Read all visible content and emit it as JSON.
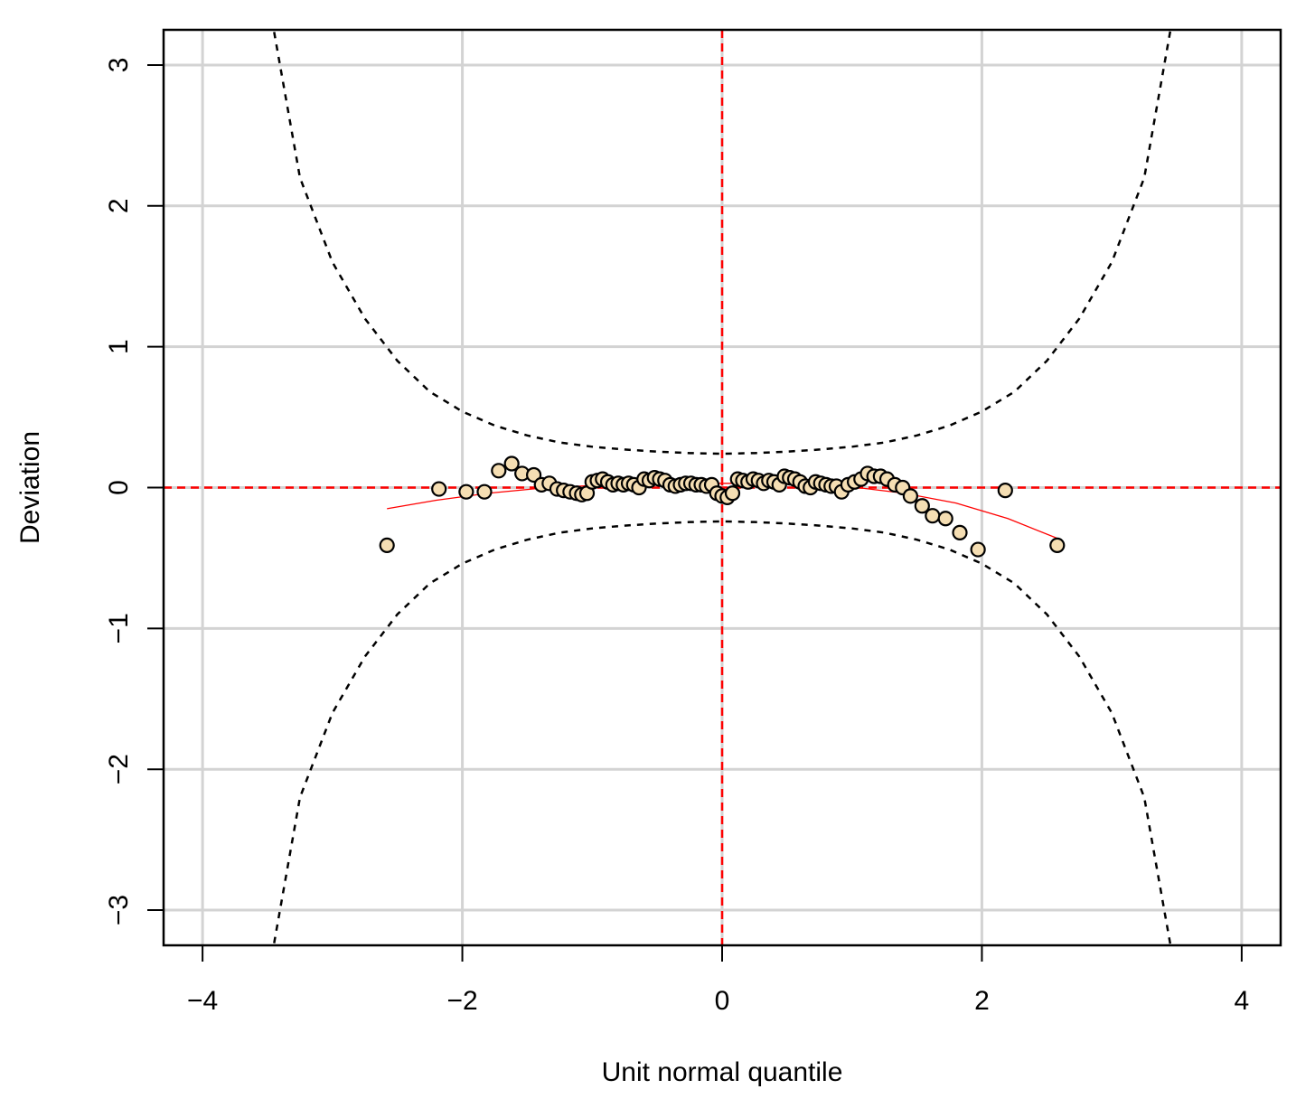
{
  "chart_data": {
    "type": "scatter",
    "title": "",
    "xlabel": "Unit normal quantile",
    "ylabel": "Deviation",
    "xlim": [
      -4.3,
      4.3
    ],
    "ylim": [
      -3.25,
      3.25
    ],
    "x_ticks": [
      -4,
      -2,
      0,
      2,
      4
    ],
    "y_ticks": [
      -3,
      -2,
      -1,
      0,
      1,
      2,
      3
    ],
    "x_tick_labels": [
      "−4",
      "−2",
      "0",
      "2",
      "4"
    ],
    "y_tick_labels": [
      "−3",
      "−2",
      "−1",
      "0",
      "1",
      "2",
      "3"
    ],
    "grid": true,
    "colors": {
      "point_fill": "#f5deb3",
      "point_stroke": "#000000",
      "reference_line": "#ff0000",
      "fit_curve": "#ff0000",
      "envelope": "#000000",
      "grid": "#d3d3d3"
    },
    "reference_lines": {
      "x": 0,
      "y": 0
    },
    "envelope_band": {
      "x": [
        -3.5,
        -3.25,
        -3.0,
        -2.75,
        -2.5,
        -2.25,
        -2.0,
        -1.75,
        -1.5,
        -1.25,
        -1.0,
        -0.75,
        -0.5,
        -0.25,
        0.0,
        0.25,
        0.5,
        0.75,
        1.0,
        1.25,
        1.5,
        1.75,
        2.0,
        2.25,
        2.5,
        2.75,
        3.0,
        3.25,
        3.5
      ],
      "upper": [
        3.5,
        2.2,
        1.6,
        1.2,
        0.9,
        0.68,
        0.54,
        0.44,
        0.37,
        0.32,
        0.29,
        0.27,
        0.255,
        0.245,
        0.24,
        0.245,
        0.255,
        0.27,
        0.29,
        0.32,
        0.37,
        0.44,
        0.54,
        0.68,
        0.9,
        1.2,
        1.6,
        2.2,
        3.5
      ],
      "lower": [
        -3.5,
        -2.2,
        -1.6,
        -1.2,
        -0.9,
        -0.68,
        -0.54,
        -0.44,
        -0.37,
        -0.32,
        -0.29,
        -0.27,
        -0.255,
        -0.245,
        -0.24,
        -0.245,
        -0.255,
        -0.27,
        -0.29,
        -0.32,
        -0.37,
        -0.44,
        -0.54,
        -0.68,
        -0.9,
        -1.2,
        -1.6,
        -2.2,
        -3.5
      ]
    },
    "fit_curve": {
      "x": [
        -2.58,
        -2.2,
        -1.8,
        -1.4,
        -1.0,
        -0.6,
        -0.2,
        0.2,
        0.6,
        1.0,
        1.4,
        1.8,
        2.2,
        2.58
      ],
      "y": [
        -0.15,
        -0.09,
        -0.04,
        -0.005,
        0.015,
        0.025,
        0.03,
        0.03,
        0.025,
        0.005,
        -0.04,
        -0.11,
        -0.22,
        -0.36
      ]
    },
    "points": {
      "x": [
        -2.58,
        -2.18,
        -1.97,
        -1.83,
        -1.72,
        -1.62,
        -1.54,
        -1.45,
        -1.39,
        -1.33,
        -1.27,
        -1.22,
        -1.17,
        -1.12,
        -1.08,
        -1.04,
        -1.0,
        -0.96,
        -0.92,
        -0.88,
        -0.84,
        -0.8,
        -0.76,
        -0.72,
        -0.68,
        -0.64,
        -0.6,
        -0.56,
        -0.52,
        -0.48,
        -0.44,
        -0.4,
        -0.36,
        -0.32,
        -0.28,
        -0.24,
        -0.2,
        -0.16,
        -0.12,
        -0.08,
        -0.04,
        0.0,
        0.04,
        0.08,
        0.12,
        0.16,
        0.2,
        0.24,
        0.28,
        0.32,
        0.36,
        0.4,
        0.44,
        0.48,
        0.52,
        0.56,
        0.6,
        0.64,
        0.68,
        0.72,
        0.76,
        0.8,
        0.84,
        0.88,
        0.92,
        0.97,
        1.02,
        1.07,
        1.12,
        1.17,
        1.22,
        1.27,
        1.33,
        1.39,
        1.45,
        1.54,
        1.62,
        1.72,
        1.83,
        1.97,
        2.18,
        2.58
      ],
      "y": [
        -0.41,
        -0.01,
        -0.03,
        -0.03,
        0.12,
        0.17,
        0.1,
        0.09,
        0.02,
        0.03,
        -0.01,
        -0.02,
        -0.03,
        -0.04,
        -0.05,
        -0.04,
        0.04,
        0.05,
        0.06,
        0.04,
        0.02,
        0.03,
        0.02,
        0.03,
        0.02,
        0.0,
        0.06,
        0.05,
        0.07,
        0.06,
        0.05,
        0.02,
        0.01,
        0.02,
        0.03,
        0.03,
        0.02,
        0.02,
        0.01,
        0.02,
        -0.04,
        -0.06,
        -0.07,
        -0.04,
        0.06,
        0.05,
        0.04,
        0.06,
        0.05,
        0.03,
        0.05,
        0.04,
        0.02,
        0.08,
        0.07,
        0.06,
        0.04,
        0.01,
        0.0,
        0.04,
        0.03,
        0.02,
        0.01,
        0.01,
        -0.03,
        0.02,
        0.04,
        0.06,
        0.1,
        0.08,
        0.08,
        0.06,
        0.02,
        0.0,
        -0.06,
        -0.13,
        -0.2,
        -0.22,
        -0.32,
        -0.44,
        -0.02,
        -0.41
      ]
    }
  }
}
